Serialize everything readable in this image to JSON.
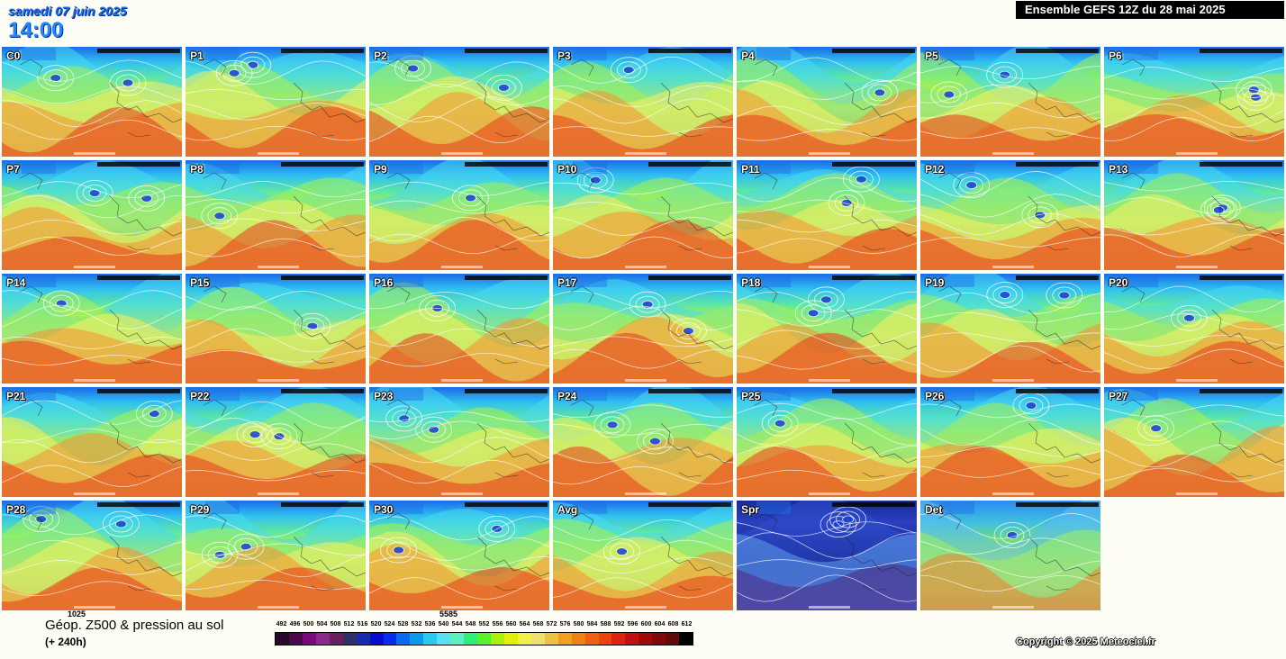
{
  "header": {
    "date": "samedi 07 juin 2025",
    "time": "14:00",
    "run_title": "Ensemble GEFS 12Z du 28 mai 2025"
  },
  "maps": [
    {
      "label": "C0",
      "style": "warm"
    },
    {
      "label": "P1",
      "style": "warm"
    },
    {
      "label": "P2",
      "style": "warm"
    },
    {
      "label": "P3",
      "style": "warm"
    },
    {
      "label": "P4",
      "style": "warm"
    },
    {
      "label": "P5",
      "style": "warm"
    },
    {
      "label": "P6",
      "style": "warm"
    },
    {
      "label": "P7",
      "style": "warm"
    },
    {
      "label": "P8",
      "style": "warm"
    },
    {
      "label": "P9",
      "style": "warm"
    },
    {
      "label": "P10",
      "style": "warm"
    },
    {
      "label": "P11",
      "style": "warm"
    },
    {
      "label": "P12",
      "style": "warm"
    },
    {
      "label": "P13",
      "style": "warm"
    },
    {
      "label": "P14",
      "style": "warm"
    },
    {
      "label": "P15",
      "style": "warm"
    },
    {
      "label": "P16",
      "style": "warm"
    },
    {
      "label": "P17",
      "style": "warm"
    },
    {
      "label": "P18",
      "style": "warm"
    },
    {
      "label": "P19",
      "style": "warm"
    },
    {
      "label": "P20",
      "style": "warm"
    },
    {
      "label": "P21",
      "style": "warm"
    },
    {
      "label": "P22",
      "style": "warm"
    },
    {
      "label": "P23",
      "style": "warm"
    },
    {
      "label": "P24",
      "style": "warm"
    },
    {
      "label": "P25",
      "style": "warm"
    },
    {
      "label": "P26",
      "style": "warm"
    },
    {
      "label": "P27",
      "style": "warm"
    },
    {
      "label": "P28",
      "style": "warm"
    },
    {
      "label": "P29",
      "style": "warm"
    },
    {
      "label": "P30",
      "style": "warm"
    },
    {
      "label": "Avg",
      "style": "warm"
    },
    {
      "label": "Spr",
      "style": "spread"
    },
    {
      "label": "Det",
      "style": "det"
    }
  ],
  "legend": {
    "title": "Géop. Z500 & pression au sol",
    "subtitle": "(+ 240h)",
    "pressure_label_1": "1025",
    "pressure_label_2": "5585",
    "scale_values": [
      "492",
      "496",
      "500",
      "504",
      "508",
      "512",
      "516",
      "520",
      "524",
      "528",
      "532",
      "536",
      "540",
      "544",
      "548",
      "552",
      "556",
      "560",
      "564",
      "568",
      "572",
      "576",
      "580",
      "584",
      "588",
      "592",
      "596",
      "600",
      "604",
      "608",
      "612"
    ],
    "scale_colors": [
      "#2a0a2a",
      "#4a0a4a",
      "#7a0a7a",
      "#8a2a8a",
      "#6a2060",
      "#30306a",
      "#1a2ab0",
      "#0a0ad0",
      "#0a2af0",
      "#0a6af0",
      "#0a9af0",
      "#2acaf0",
      "#5ae0f0",
      "#5af0c0",
      "#2af07a",
      "#5af02a",
      "#aaf00a",
      "#e0f00a",
      "#f0f04a",
      "#f0e070",
      "#f0c040",
      "#f0a020",
      "#f08010",
      "#f06010",
      "#f04010",
      "#e02010",
      "#c01010",
      "#a00a0a",
      "#800a0a",
      "#600a0a",
      "#000000"
    ]
  },
  "copyright": "Copyright © 2025 Meteociel.fr"
}
